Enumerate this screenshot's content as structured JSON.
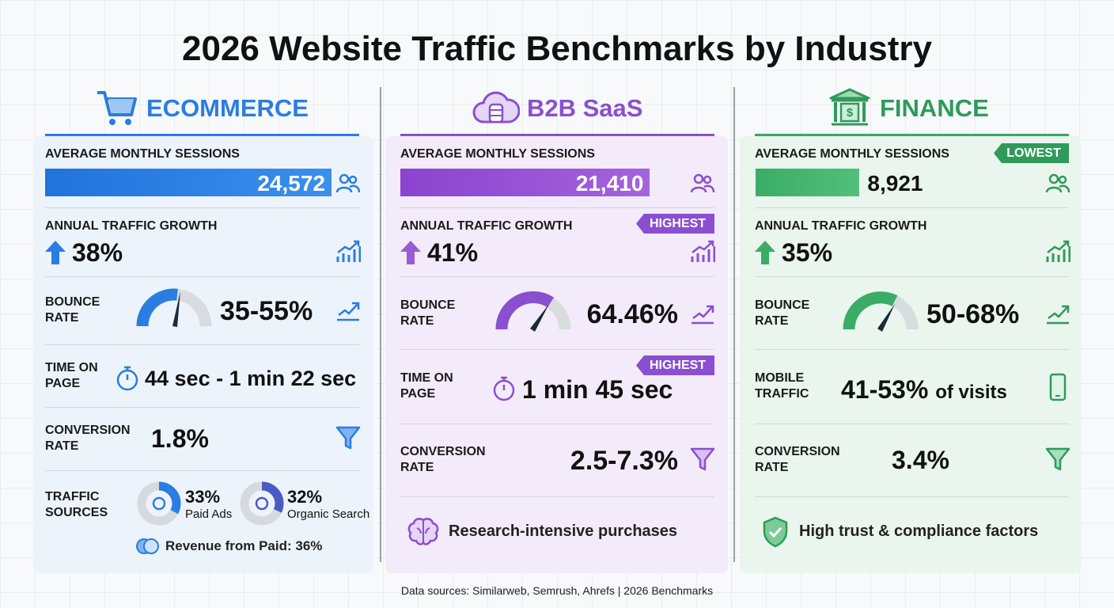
{
  "title": "2026 Website Traffic Benchmarks by Industry",
  "columns": [
    {
      "name": "ECOMMERCE",
      "sessions": {
        "label": "AVERAGE MONTHLY SESSIONS",
        "value": 24572,
        "value_label": "24,572"
      },
      "growth": {
        "label": "ANNUAL TRAFFIC GROWTH",
        "value": "38%"
      },
      "bounce": {
        "label": "BOUNCE RATE",
        "value": "35-55%"
      },
      "time": {
        "label": "TIME ON PAGE",
        "value": "44 sec - 1 min 22 sec"
      },
      "conversion": {
        "label": "CONVERSION RATE",
        "value": "1.8%"
      },
      "traffic_sources": {
        "label": "TRAFFIC SOURCES",
        "items": [
          {
            "value": 33,
            "value_label": "33%",
            "name": "Paid Ads"
          },
          {
            "value": 32,
            "value_label": "32%",
            "name": "Organic Search"
          }
        ],
        "note": "Revenue from Paid: 36%"
      }
    },
    {
      "name": "B2B SaaS",
      "sessions": {
        "label": "AVERAGE MONTHLY SESSIONS",
        "value": 21410,
        "value_label": "21,410"
      },
      "growth": {
        "label": "ANNUAL TRAFFIC GROWTH",
        "value": "41%",
        "badge": "HIGHEST"
      },
      "bounce": {
        "label": "BOUNCE RATE",
        "value": "64.46%"
      },
      "time": {
        "label": "TIME ON PAGE",
        "value": "1 min 45 sec",
        "badge": "HIGHEST"
      },
      "conversion": {
        "label": "CONVERSION RATE",
        "value": "2.5-7.3%"
      },
      "note": "Research-intensive purchases"
    },
    {
      "name": "FINANCE",
      "sessions": {
        "label": "AVERAGE MONTHLY SESSIONS",
        "value": 8921,
        "value_label": "8,921",
        "badge": "LOWEST"
      },
      "growth": {
        "label": "ANNUAL TRAFFIC GROWTH",
        "value": "35%"
      },
      "bounce": {
        "label": "BOUNCE RATE",
        "value": "50-68%"
      },
      "mobile": {
        "label": "MOBILE TRAFFIC",
        "value": "41-53%",
        "suffix": "of visits"
      },
      "conversion": {
        "label": "CONVERSION RATE",
        "value": "3.4%"
      },
      "note": "High trust & compliance factors"
    }
  ],
  "footer": "Data sources: Similarweb, Semrush, Ahrefs | 2026 Benchmarks"
}
